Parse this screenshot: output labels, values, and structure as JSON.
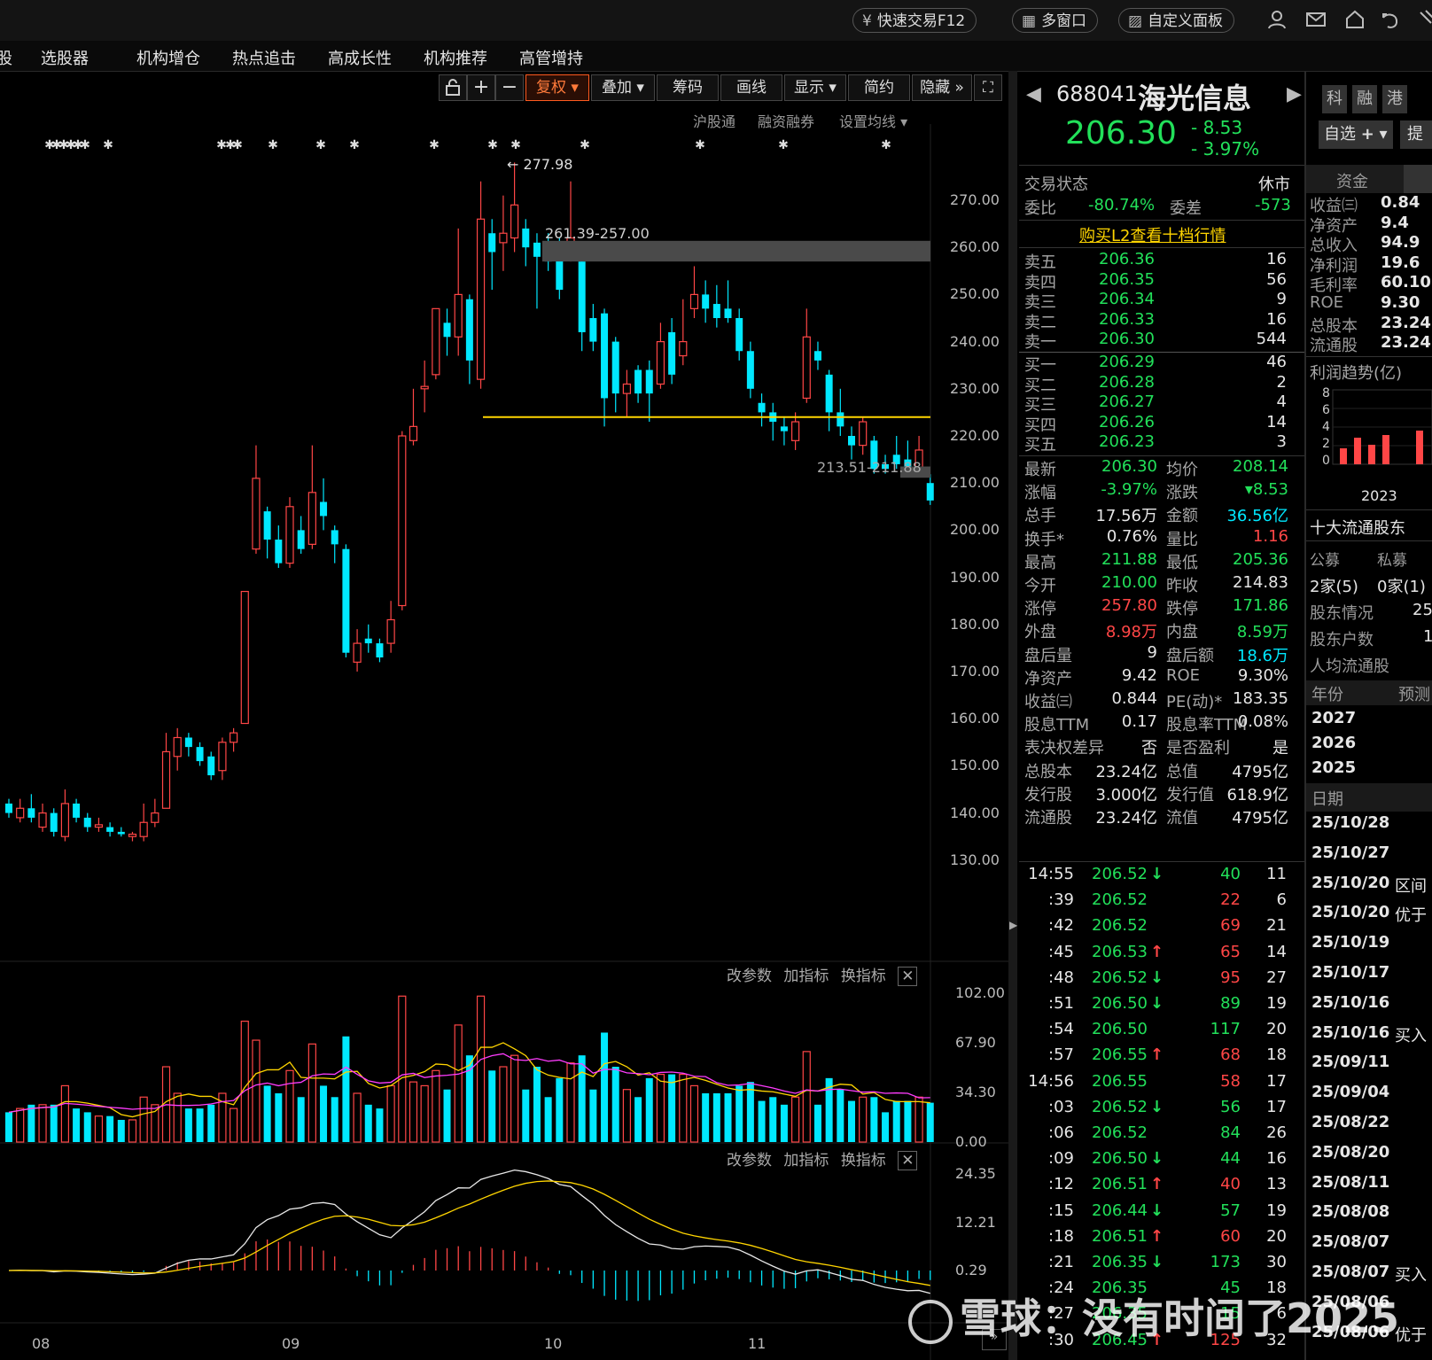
{
  "topbar": {
    "quick_trade": "快速交易F12",
    "multi_window": "多窗口",
    "custom_panel": "自定义面板"
  },
  "menu": {
    "items": [
      "股",
      "选股器",
      "机构增仓",
      "热点追击",
      "高成长性",
      "机构推荐",
      "高管增持"
    ]
  },
  "toolbar": {
    "fuquan": "复权",
    "diejia": "叠加",
    "chouma": "筹码",
    "huaxian": "画线",
    "xianshi": "显示",
    "jianyue": "简约",
    "yincang": "隐藏"
  },
  "chart_sub": {
    "hgt": "沪股通",
    "rzrq": "融资融券",
    "ma_setting": "设置均线"
  },
  "chart_annot": {
    "high_label": "277.98",
    "gap_label": "261.39-257.00",
    "gap2_label": "213.51-211.88"
  },
  "price_axis": [
    "270.00",
    "260.00",
    "250.00",
    "240.00",
    "230.00",
    "220.00",
    "210.00",
    "200.00",
    "190.00",
    "180.00",
    "170.00",
    "160.00",
    "150.00",
    "140.00",
    "130.00"
  ],
  "vol_axis": [
    "102.00",
    "67.90",
    "34.30",
    "0.00"
  ],
  "macd_axis": [
    "24.35",
    "12.21",
    "0.29"
  ],
  "indicator_controls": {
    "gcs": "改参数",
    "jzb": "加指标",
    "hzb": "换指标"
  },
  "x_labels": [
    "08",
    "09",
    "10",
    "11"
  ],
  "stock": {
    "code": "688041",
    "name": "海光信息",
    "price": "206.30",
    "change": "- 8.53",
    "change_pct": "- 3.97%",
    "tags": [
      "科",
      "融",
      "港"
    ],
    "watch_btn": "自选",
    "ti": "提"
  },
  "status": {
    "label": "交易状态",
    "value": "休市",
    "weibi_label": "委比",
    "weibi": "-80.74%",
    "weicha_label": "委差",
    "weicha": "-573",
    "l2_link": "购买L2查看十档行情"
  },
  "asks": [
    {
      "label": "卖五",
      "price": "206.36",
      "vol": "16"
    },
    {
      "label": "卖四",
      "price": "206.35",
      "vol": "56"
    },
    {
      "label": "卖三",
      "price": "206.34",
      "vol": "9"
    },
    {
      "label": "卖二",
      "price": "206.33",
      "vol": "16"
    },
    {
      "label": "卖一",
      "price": "206.30",
      "vol": "544"
    }
  ],
  "bids": [
    {
      "label": "买一",
      "price": "206.29",
      "vol": "46"
    },
    {
      "label": "买二",
      "price": "206.28",
      "vol": "2"
    },
    {
      "label": "买三",
      "price": "206.27",
      "vol": "4"
    },
    {
      "label": "买四",
      "price": "206.26",
      "vol": "14"
    },
    {
      "label": "买五",
      "price": "206.23",
      "vol": "3"
    }
  ],
  "stats": [
    {
      "l1": "最新",
      "v1": "206.30",
      "c1": "grn",
      "l2": "均价",
      "v2": "208.14",
      "c2": "grn"
    },
    {
      "l1": "涨幅",
      "v1": "-3.97%",
      "c1": "grn",
      "l2": "涨跌",
      "v2": "▾8.53",
      "c2": "grn"
    },
    {
      "l1": "总手",
      "v1": "17.56万",
      "c1": "white",
      "l2": "金额",
      "v2": "36.56亿",
      "c2": "cyan"
    },
    {
      "l1": "换手*",
      "v1": "0.76%",
      "c1": "white",
      "l2": "量比",
      "v2": "1.16",
      "c2": "red"
    },
    {
      "l1": "最高",
      "v1": "211.88",
      "c1": "grn",
      "l2": "最低",
      "v2": "205.36",
      "c2": "grn"
    },
    {
      "l1": "今开",
      "v1": "210.00",
      "c1": "grn",
      "l2": "昨收",
      "v2": "214.83",
      "c2": "white"
    },
    {
      "l1": "涨停",
      "v1": "257.80",
      "c1": "red",
      "l2": "跌停",
      "v2": "171.86",
      "c2": "grn"
    },
    {
      "l1": "外盘",
      "v1": "8.98万",
      "c1": "red",
      "l2": "内盘",
      "v2": "8.59万",
      "c2": "grn"
    },
    {
      "l1": "盘后量",
      "v1": "9",
      "c1": "white",
      "l2": "盘后额",
      "v2": "18.6万",
      "c2": "cyan"
    },
    {
      "l1": "净资产",
      "v1": "9.42",
      "c1": "white",
      "l2": "ROE",
      "v2": "9.30%",
      "c2": "white"
    },
    {
      "l1": "收益㈢",
      "v1": "0.844",
      "c1": "white",
      "l2": "PE(动)*",
      "v2": "183.35",
      "c2": "white"
    },
    {
      "l1": "股息TTM",
      "v1": "0.17",
      "c1": "white",
      "l2": "股息率TTM",
      "v2": "0.08%",
      "c2": "white"
    },
    {
      "l1": "表决权差异",
      "v1": "否",
      "c1": "white",
      "l2": "是否盈利",
      "v2": "是",
      "c2": "white"
    },
    {
      "l1": "总股本",
      "v1": "23.24亿",
      "c1": "white",
      "l2": "总值",
      "v2": "4795亿",
      "c2": "white"
    },
    {
      "l1": "发行股",
      "v1": "3.000亿",
      "c1": "white",
      "l2": "发行值",
      "v2": "618.9亿",
      "c2": "white"
    },
    {
      "l1": "流通股",
      "v1": "23.24亿",
      "c1": "white",
      "l2": "流值",
      "v2": "4795亿",
      "c2": "white"
    }
  ],
  "ticks": [
    {
      "t": "14:55",
      "p": "206.52",
      "d": "down",
      "v": "40",
      "vc": "grn",
      "n": "11"
    },
    {
      "t": ":39",
      "p": "206.52",
      "d": "",
      "v": "22",
      "vc": "red",
      "n": "6"
    },
    {
      "t": ":42",
      "p": "206.52",
      "d": "",
      "v": "69",
      "vc": "red",
      "n": "21"
    },
    {
      "t": ":45",
      "p": "206.53",
      "d": "up",
      "v": "65",
      "vc": "red",
      "n": "14"
    },
    {
      "t": ":48",
      "p": "206.52",
      "d": "down",
      "v": "95",
      "vc": "red",
      "n": "27"
    },
    {
      "t": ":51",
      "p": "206.50",
      "d": "down",
      "v": "89",
      "vc": "grn",
      "n": "19"
    },
    {
      "t": ":54",
      "p": "206.50",
      "d": "",
      "v": "117",
      "vc": "grn",
      "n": "20"
    },
    {
      "t": ":57",
      "p": "206.55",
      "d": "up",
      "v": "68",
      "vc": "red",
      "n": "18"
    },
    {
      "t": "14:56",
      "p": "206.55",
      "d": "",
      "v": "58",
      "vc": "red",
      "n": "17"
    },
    {
      "t": ":03",
      "p": "206.52",
      "d": "down",
      "v": "56",
      "vc": "grn",
      "n": "17"
    },
    {
      "t": ":06",
      "p": "206.52",
      "d": "",
      "v": "84",
      "vc": "grn",
      "n": "26"
    },
    {
      "t": ":09",
      "p": "206.50",
      "d": "down",
      "v": "44",
      "vc": "grn",
      "n": "16"
    },
    {
      "t": ":12",
      "p": "206.51",
      "d": "up",
      "v": "40",
      "vc": "red",
      "n": "13"
    },
    {
      "t": ":15",
      "p": "206.44",
      "d": "down",
      "v": "57",
      "vc": "grn",
      "n": "19"
    },
    {
      "t": ":18",
      "p": "206.51",
      "d": "up",
      "v": "60",
      "vc": "red",
      "n": "20"
    },
    {
      "t": ":21",
      "p": "206.35",
      "d": "down",
      "v": "173",
      "vc": "grn",
      "n": "30"
    },
    {
      "t": ":24",
      "p": "206.35",
      "d": "",
      "v": "45",
      "vc": "grn",
      "n": "18"
    },
    {
      "t": ":27",
      "p": "206.35",
      "d": "",
      "v": "15",
      "vc": "grn",
      "n": "6"
    },
    {
      "t": ":30",
      "p": "206.45",
      "d": "up",
      "v": "125",
      "vc": "red",
      "n": "32"
    }
  ],
  "fin": {
    "tab1": "资金",
    "rows": [
      {
        "l": "收益㈢",
        "v": "0.84"
      },
      {
        "l": "净资产",
        "v": "9.4"
      },
      {
        "l": "总收入",
        "v": "94.9"
      },
      {
        "l": "净利润",
        "v": "19.6"
      },
      {
        "l": "毛利率",
        "v": "60.10"
      },
      {
        "l": "ROE",
        "v": "9.30"
      },
      {
        "l": "总股本",
        "v": "23.24"
      },
      {
        "l": "流通股",
        "v": "23.24"
      }
    ],
    "profit_title": "利润趋势(亿)",
    "profit_axis": [
      "8",
      "6",
      "4",
      "2",
      "0"
    ],
    "profit_year": "2023",
    "holders_title": "十大流通股东",
    "gm": "公募",
    "sm": "私募",
    "gm_v": "2家(5)",
    "sm_v": "0家(1)",
    "holder_info": "股东情况",
    "holder_info_v": "25",
    "holder_count": "股东户数",
    "holder_count_v": "1",
    "avg_float": "人均流通股",
    "year_label": "年份",
    "forecast": "预测",
    "years": [
      "2027",
      "2026",
      "2025"
    ],
    "date_label": "日期",
    "events": [
      {
        "d": "25/10/28",
        "t": ""
      },
      {
        "d": "25/10/27",
        "t": ""
      },
      {
        "d": "25/10/20",
        "t": "区间"
      },
      {
        "d": "25/10/20",
        "t": "优于"
      },
      {
        "d": "25/10/19",
        "t": ""
      },
      {
        "d": "25/10/17",
        "t": ""
      },
      {
        "d": "25/10/16",
        "t": ""
      },
      {
        "d": "25/10/16",
        "t": "买入"
      },
      {
        "d": "25/09/11",
        "t": ""
      },
      {
        "d": "25/09/04",
        "t": ""
      },
      {
        "d": "25/08/22",
        "t": ""
      },
      {
        "d": "25/08/20",
        "t": ""
      },
      {
        "d": "25/08/11",
        "t": ""
      },
      {
        "d": "25/08/08",
        "t": ""
      },
      {
        "d": "25/08/07",
        "t": ""
      },
      {
        "d": "25/08/07",
        "t": "买入"
      },
      {
        "d": "25/08/06",
        "t": ""
      },
      {
        "d": "25/08/06",
        "t": "优于"
      }
    ]
  },
  "watermark": "雪球：没有时间了2025",
  "colors": {
    "up": "#ff4646",
    "down": "#00e8ff",
    "ma_yellow": "#ffd500",
    "ma_magenta": "#ff3cff",
    "line_white": "#e8e8e8"
  },
  "chart_data": {
    "type": "candlestick",
    "price_range": [
      125,
      280
    ],
    "support_line": 224,
    "candles": [
      {
        "o": 142,
        "c": 140,
        "h": 143,
        "l": 139
      },
      {
        "o": 139,
        "c": 141,
        "h": 143,
        "l": 138
      },
      {
        "o": 141,
        "c": 139,
        "h": 144,
        "l": 138
      },
      {
        "o": 137,
        "c": 140,
        "h": 142,
        "l": 136
      },
      {
        "o": 140,
        "c": 136,
        "h": 141,
        "l": 135
      },
      {
        "o": 135,
        "c": 142,
        "h": 145,
        "l": 134
      },
      {
        "o": 142,
        "c": 139,
        "h": 143,
        "l": 138
      },
      {
        "o": 139,
        "c": 137,
        "h": 140,
        "l": 136
      },
      {
        "o": 137,
        "c": 137.5,
        "h": 139,
        "l": 136
      },
      {
        "o": 137,
        "c": 136,
        "h": 138,
        "l": 135
      },
      {
        "o": 136,
        "c": 135.5,
        "h": 137,
        "l": 135
      },
      {
        "o": 135,
        "c": 135.5,
        "h": 136,
        "l": 134
      },
      {
        "o": 135,
        "c": 138,
        "h": 142,
        "l": 134
      },
      {
        "o": 138,
        "c": 140,
        "h": 143,
        "l": 137
      },
      {
        "o": 141,
        "c": 153,
        "h": 157,
        "l": 141
      },
      {
        "o": 152,
        "c": 156,
        "h": 158,
        "l": 149
      },
      {
        "o": 156,
        "c": 154,
        "h": 157,
        "l": 152
      },
      {
        "o": 154,
        "c": 151,
        "h": 155,
        "l": 150
      },
      {
        "o": 152,
        "c": 148,
        "h": 153,
        "l": 147
      },
      {
        "o": 149,
        "c": 155,
        "h": 156,
        "l": 147
      },
      {
        "o": 155,
        "c": 157,
        "h": 158,
        "l": 153
      },
      {
        "o": 159,
        "c": 187,
        "h": 187,
        "l": 159
      },
      {
        "o": 196,
        "c": 211,
        "h": 218,
        "l": 195
      },
      {
        "o": 204,
        "c": 198,
        "h": 205,
        "l": 194
      },
      {
        "o": 198,
        "c": 193,
        "h": 201,
        "l": 192
      },
      {
        "o": 193,
        "c": 205,
        "h": 207,
        "l": 192
      },
      {
        "o": 200,
        "c": 196,
        "h": 203,
        "l": 195
      },
      {
        "o": 197,
        "c": 208,
        "h": 218,
        "l": 196
      },
      {
        "o": 206,
        "c": 203,
        "h": 211,
        "l": 200
      },
      {
        "o": 200,
        "c": 197,
        "h": 201,
        "l": 193
      },
      {
        "o": 196,
        "c": 174,
        "h": 197,
        "l": 173
      },
      {
        "o": 172,
        "c": 176,
        "h": 179,
        "l": 170
      },
      {
        "o": 177,
        "c": 176,
        "h": 180,
        "l": 174
      },
      {
        "o": 176,
        "c": 173,
        "h": 177,
        "l": 172
      },
      {
        "o": 176,
        "c": 181,
        "h": 185,
        "l": 174
      },
      {
        "o": 184,
        "c": 220,
        "h": 221,
        "l": 183
      },
      {
        "o": 219,
        "c": 222,
        "h": 230,
        "l": 218
      },
      {
        "o": 230,
        "c": 230.5,
        "h": 236,
        "l": 225
      },
      {
        "o": 233,
        "c": 247,
        "h": 247,
        "l": 232
      },
      {
        "o": 244,
        "c": 241,
        "h": 247,
        "l": 237
      },
      {
        "o": 241,
        "c": 250,
        "h": 264,
        "l": 237
      },
      {
        "o": 249,
        "c": 236,
        "h": 250,
        "l": 231
      },
      {
        "o": 232,
        "c": 266,
        "h": 274,
        "l": 230
      },
      {
        "o": 263,
        "c": 259,
        "h": 266,
        "l": 251
      },
      {
        "o": 261,
        "c": 263,
        "h": 271,
        "l": 255
      },
      {
        "o": 262,
        "c": 269,
        "h": 278,
        "l": 259
      },
      {
        "o": 264,
        "c": 260,
        "h": 266,
        "l": 256
      },
      {
        "o": 261,
        "c": 258,
        "h": 263,
        "l": 247
      },
      {
        "o": 260,
        "c": 257,
        "h": 263,
        "l": 255
      },
      {
        "o": 261,
        "c": 251,
        "h": 262,
        "l": 249
      },
      {
        "o": 260,
        "c": 262,
        "h": 274,
        "l": 257
      },
      {
        "o": 257,
        "c": 242,
        "h": 257,
        "l": 238
      },
      {
        "o": 245,
        "c": 240,
        "h": 248,
        "l": 238
      },
      {
        "o": 246,
        "c": 228,
        "h": 247,
        "l": 222
      },
      {
        "o": 240,
        "c": 229,
        "h": 241,
        "l": 225
      },
      {
        "o": 229,
        "c": 231,
        "h": 234,
        "l": 224
      },
      {
        "o": 234,
        "c": 229,
        "h": 235,
        "l": 227
      },
      {
        "o": 234,
        "c": 229,
        "h": 236,
        "l": 223
      },
      {
        "o": 231,
        "c": 240,
        "h": 244,
        "l": 230
      },
      {
        "o": 242,
        "c": 233,
        "h": 245,
        "l": 231
      },
      {
        "o": 237,
        "c": 240,
        "h": 249,
        "l": 235
      },
      {
        "o": 247,
        "c": 250,
        "h": 256,
        "l": 245
      },
      {
        "o": 250,
        "c": 247,
        "h": 253,
        "l": 244
      },
      {
        "o": 248,
        "c": 245,
        "h": 252,
        "l": 243
      },
      {
        "o": 247,
        "c": 245,
        "h": 253,
        "l": 244
      },
      {
        "o": 245,
        "c": 238,
        "h": 247,
        "l": 236
      },
      {
        "o": 238,
        "c": 230,
        "h": 240,
        "l": 228
      },
      {
        "o": 227,
        "c": 225,
        "h": 229,
        "l": 222
      },
      {
        "o": 225,
        "c": 223,
        "h": 227,
        "l": 219
      },
      {
        "o": 222,
        "c": 221,
        "h": 224,
        "l": 218
      },
      {
        "o": 219,
        "c": 223,
        "h": 225,
        "l": 217
      },
      {
        "o": 228,
        "c": 241,
        "h": 247,
        "l": 227
      },
      {
        "o": 238,
        "c": 236,
        "h": 240,
        "l": 234
      },
      {
        "o": 233,
        "c": 225,
        "h": 234,
        "l": 221
      },
      {
        "o": 225,
        "c": 222,
        "h": 230,
        "l": 220
      },
      {
        "o": 220,
        "c": 218,
        "h": 222,
        "l": 215
      },
      {
        "o": 218,
        "c": 223,
        "h": 224,
        "l": 216
      },
      {
        "o": 219,
        "c": 213,
        "h": 220,
        "l": 212
      },
      {
        "o": 214,
        "c": 213,
        "h": 216,
        "l": 212
      },
      {
        "o": 216,
        "c": 214,
        "h": 220,
        "l": 213
      },
      {
        "o": 215,
        "c": 213,
        "h": 219,
        "l": 212
      },
      {
        "o": 213,
        "c": 217,
        "h": 220,
        "l": 212
      },
      {
        "o": 210,
        "c": 206.3,
        "h": 211.88,
        "l": 205.36
      }
    ],
    "volume_range": [
      0,
      102
    ],
    "macd_range": [
      -10,
      28
    ]
  }
}
